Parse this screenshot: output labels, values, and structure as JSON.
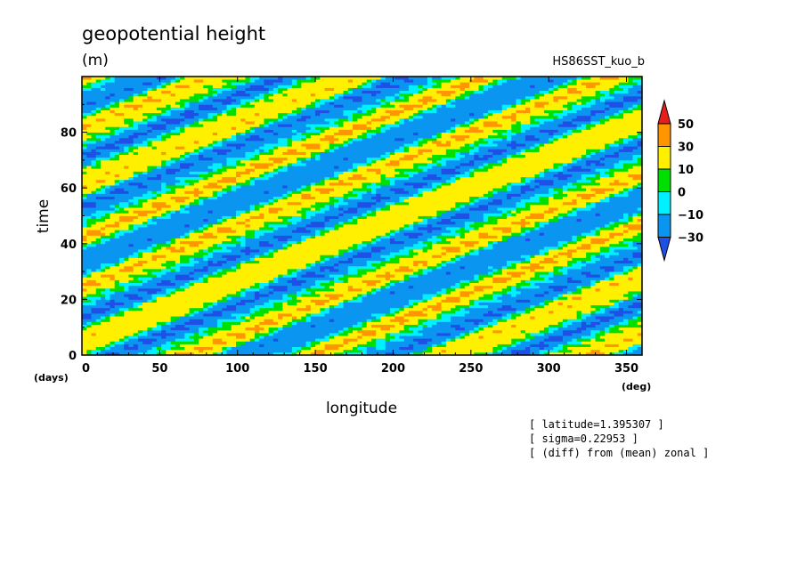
{
  "chart_data": {
    "type": "heatmap",
    "title": "geopotential height",
    "units": "(m)",
    "run_label": "HS86SST_kuo_b",
    "xlabel": "longitude",
    "x_unit": "(deg)",
    "ylabel": "time",
    "y_unit": "(days)",
    "xlim": [
      0,
      360
    ],
    "ylim": [
      0,
      100
    ],
    "x_ticks": [
      "0",
      "50",
      "100",
      "150",
      "200",
      "250",
      "300",
      "350"
    ],
    "x_tick_values": [
      0,
      50,
      100,
      150,
      200,
      250,
      300,
      350
    ],
    "y_ticks": [
      "0",
      "20",
      "40",
      "60",
      "80"
    ],
    "y_tick_values": [
      0,
      20,
      40,
      60,
      80
    ],
    "colorbar": {
      "labels": [
        "50",
        "30",
        "10",
        "0",
        "−10",
        "−30"
      ],
      "levels": [
        -30,
        -10,
        0,
        10,
        30,
        50
      ],
      "colors": [
        "#1e50e6",
        "#0a96f0",
        "#00f0ff",
        "#00e000",
        "#fff000",
        "#ff9600",
        "#e61e1e"
      ],
      "extend": "both"
    },
    "bands_description": "eastward-propagating alternating anomaly bands",
    "band_phase_speed_deg_per_day": 4.5,
    "band_period_days": 19.0
  },
  "annotations": [
    "[ latitude=1.395307 ]",
    "[ sigma=0.22953 ]",
    "[ (diff) from (mean) zonal ]"
  ]
}
